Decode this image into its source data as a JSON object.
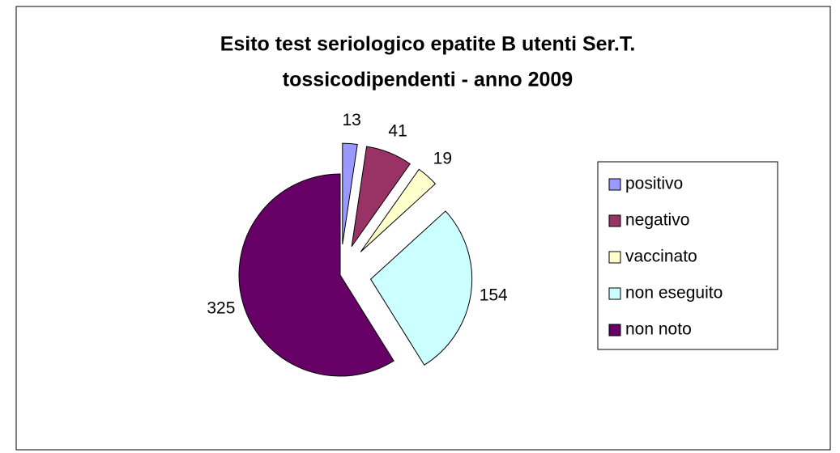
{
  "chart_data": {
    "type": "pie",
    "title": [
      "Esito test seriologico epatite B utenti Ser.T.",
      "tossicodipendenti - anno 2009"
    ],
    "categories": [
      "positivo",
      "negativo",
      "vaccinato",
      "non eseguito",
      "non noto"
    ],
    "values": [
      13,
      41,
      19,
      154,
      325
    ],
    "colors": [
      "#9999ff",
      "#993366",
      "#ffffcc",
      "#ccffff",
      "#660066"
    ],
    "legend": "right"
  }
}
